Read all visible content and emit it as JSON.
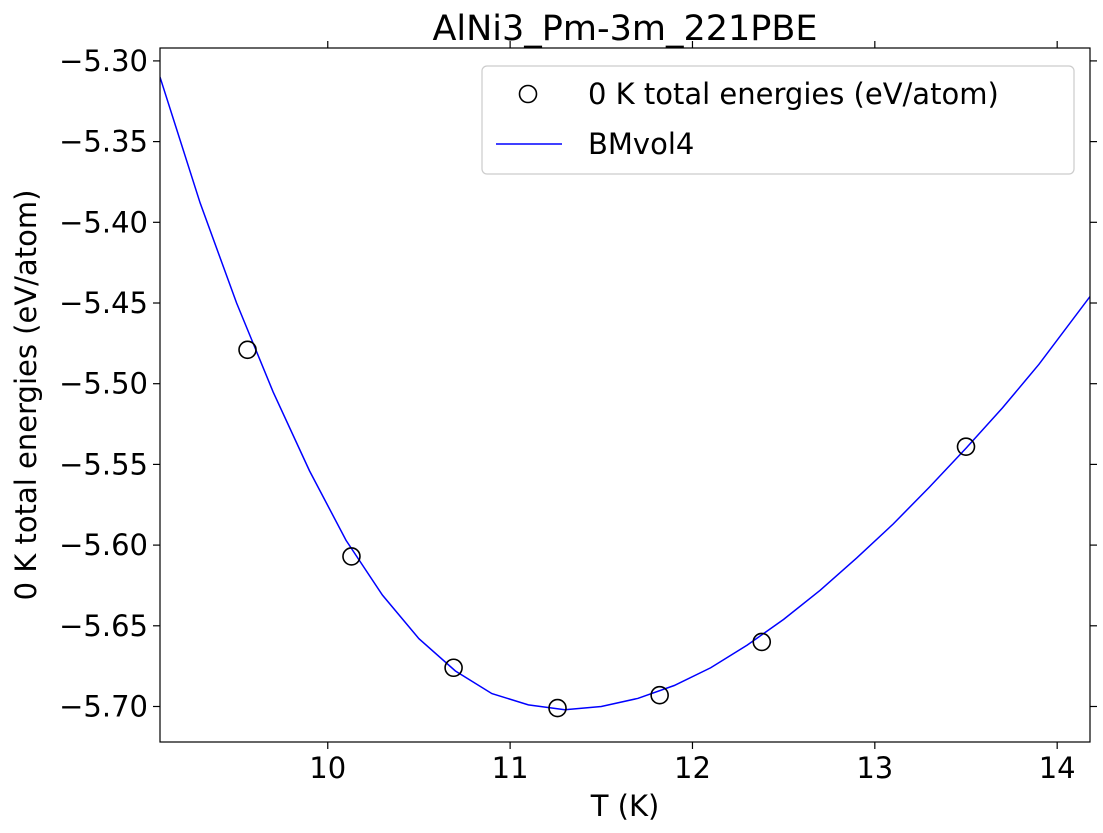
{
  "chart_data": {
    "type": "scatter",
    "title": "AlNi3_Pm-3m_221PBE",
    "xlabel": "T (K)",
    "ylabel": "0 K total energies (eV/atom)",
    "xlim": [
      9.08,
      14.18
    ],
    "ylim": [
      -5.722,
      -5.292
    ],
    "xticks": [
      10,
      11,
      12,
      13,
      14
    ],
    "xtick_labels": [
      "10",
      "11",
      "12",
      "13",
      "14"
    ],
    "yticks": [
      -5.3,
      -5.35,
      -5.4,
      -5.45,
      -5.5,
      -5.55,
      -5.6,
      -5.65,
      -5.7
    ],
    "ytick_labels": [
      "−5.30",
      "−5.35",
      "−5.40",
      "−5.45",
      "−5.50",
      "−5.55",
      "−5.60",
      "−5.65",
      "−5.70"
    ],
    "grid": false,
    "legend_position": "upper right",
    "series": [
      {
        "name": "0 K total energies (eV/atom)",
        "kind": "scatter",
        "marker": "open-circle",
        "color": "#000000",
        "x": [
          9.56,
          10.13,
          10.69,
          11.26,
          11.82,
          12.38,
          13.5
        ],
        "y": [
          -5.479,
          -5.607,
          -5.676,
          -5.701,
          -5.693,
          -5.66,
          -5.539
        ]
      },
      {
        "name": "BMvol4",
        "kind": "line",
        "color": "#0000ff",
        "x": [
          9.08,
          9.3,
          9.5,
          9.7,
          9.9,
          10.1,
          10.3,
          10.5,
          10.7,
          10.9,
          11.1,
          11.3,
          11.5,
          11.7,
          11.9,
          12.1,
          12.3,
          12.5,
          12.7,
          12.9,
          13.1,
          13.3,
          13.5,
          13.7,
          13.9,
          14.18
        ],
        "y": [
          -5.31,
          -5.388,
          -5.45,
          -5.505,
          -5.554,
          -5.597,
          -5.631,
          -5.658,
          -5.678,
          -5.692,
          -5.699,
          -5.702,
          -5.7,
          -5.695,
          -5.687,
          -5.676,
          -5.662,
          -5.646,
          -5.628,
          -5.608,
          -5.587,
          -5.564,
          -5.54,
          -5.515,
          -5.488,
          -5.446
        ]
      }
    ]
  }
}
